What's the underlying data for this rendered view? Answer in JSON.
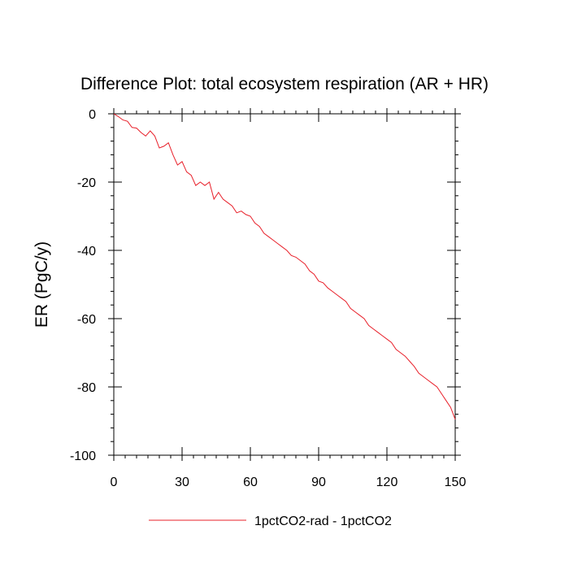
{
  "chart_data": {
    "type": "line",
    "title": "Difference Plot: total ecosystem respiration (AR + HR)",
    "xlabel": "",
    "ylabel": "ER  (PgC/y)",
    "xlim": [
      0,
      150
    ],
    "ylim": [
      -100,
      0
    ],
    "x_ticks": [
      0,
      30,
      60,
      90,
      120,
      150
    ],
    "y_ticks": [
      0,
      -20,
      -40,
      -60,
      -80,
      -100
    ],
    "x_tick_labels": [
      "0",
      "30",
      "60",
      "90",
      "120",
      "150"
    ],
    "y_tick_labels": [
      "0",
      "-20",
      "-40",
      "-60",
      "-80",
      "-100"
    ],
    "grid": false,
    "legend_position": "bottom-center",
    "series": [
      {
        "name": "1pctCO2-rad - 1pctCO2",
        "color": "#e8202a",
        "x": [
          0,
          2,
          4,
          6,
          8,
          10,
          12,
          14,
          16,
          18,
          20,
          22,
          24,
          26,
          28,
          30,
          32,
          34,
          36,
          38,
          40,
          42,
          44,
          46,
          48,
          50,
          52,
          54,
          56,
          58,
          60,
          62,
          64,
          66,
          68,
          70,
          72,
          74,
          76,
          78,
          80,
          82,
          84,
          86,
          88,
          90,
          92,
          94,
          96,
          98,
          100,
          102,
          104,
          106,
          108,
          110,
          112,
          114,
          116,
          118,
          120,
          122,
          124,
          126,
          128,
          130,
          132,
          134,
          136,
          138,
          140,
          142,
          144,
          146,
          148,
          150
        ],
        "y": [
          0,
          -0.8,
          -1.8,
          -2.2,
          -4,
          -4.2,
          -5.5,
          -6.5,
          -5,
          -6.5,
          -10,
          -9.5,
          -8.5,
          -12,
          -15,
          -14,
          -17,
          -18,
          -21,
          -20,
          -21,
          -20,
          -25,
          -23,
          -25,
          -26,
          -27,
          -29,
          -28.5,
          -29.5,
          -30,
          -32,
          -33,
          -35,
          -36,
          -37,
          -38,
          -39,
          -40,
          -41.5,
          -42,
          -43,
          -44,
          -46,
          -47,
          -49,
          -49.5,
          -51,
          -52,
          -53,
          -54,
          -55,
          -57,
          -58,
          -59,
          -60,
          -62,
          -63,
          -64,
          -65,
          -66,
          -67,
          -69,
          -70,
          -71,
          -72.5,
          -74,
          -76,
          -77,
          -78,
          -79,
          -80,
          -82,
          -84,
          -86,
          -89.5
        ]
      }
    ]
  }
}
